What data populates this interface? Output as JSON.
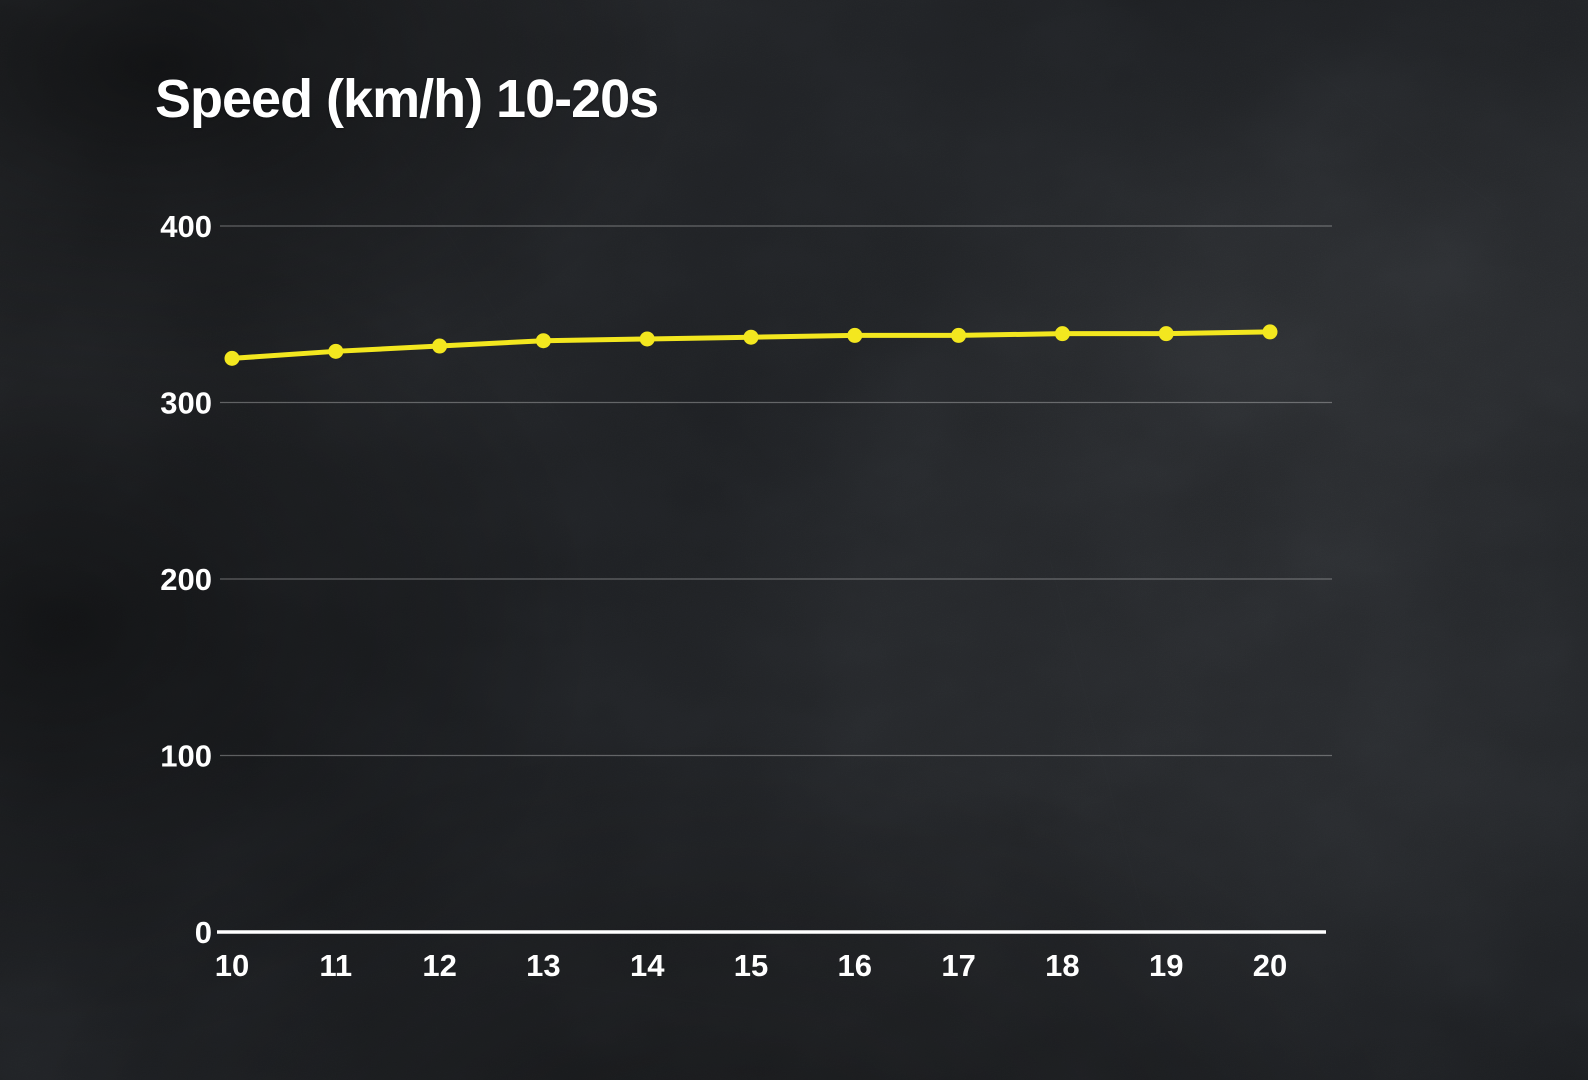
{
  "page": {
    "title": "Speed (km/h) 10-20s"
  },
  "chart_data": {
    "type": "line",
    "title": "Speed (km/h) 10-20s",
    "x": [
      10,
      11,
      12,
      13,
      14,
      15,
      16,
      17,
      18,
      19,
      20
    ],
    "x_tick_labels": [
      "10",
      "11",
      "12",
      "13",
      "14",
      "15",
      "16",
      "17",
      "18",
      "19",
      "20"
    ],
    "series": [
      {
        "name": "Speed (km/h)",
        "values": [
          325,
          329,
          332,
          335,
          336,
          337,
          338,
          338,
          339,
          339,
          340
        ]
      }
    ],
    "xlabel": "",
    "ylabel": "",
    "ylim": [
      0,
      400
    ],
    "yticks": [
      0,
      100,
      200,
      300,
      400
    ],
    "grid": true,
    "legend_position": "none",
    "line_color": "#f3e71f",
    "marker": "circle",
    "axis_color": "#ffffff",
    "gridline_color": "rgba(255,255,255,0.30)",
    "label_color": "#ffffff",
    "background_tone": "#202225"
  }
}
